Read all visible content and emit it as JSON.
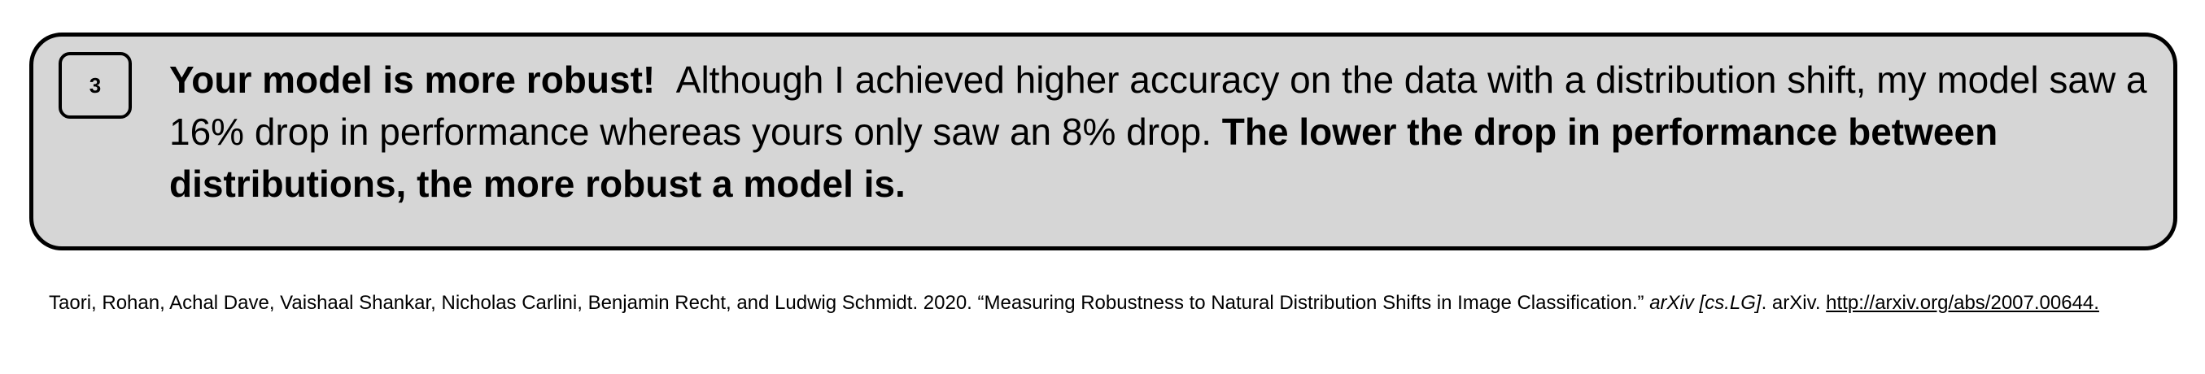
{
  "callout": {
    "number": "3",
    "headline": "Your model is more robust!",
    "body": "Although I achieved higher accuracy on the data with a distribution shift, my model saw a 16% drop in performance whereas yours only saw an 8% drop.",
    "conclusion": "The lower the drop in performance between distributions, the more robust a model is."
  },
  "reference": {
    "authors_year_title": "Taori, Rohan, Achal Dave, Vaishaal Shankar, Nicholas Carlini, Benjamin Recht, and Ludwig Schmidt. 2020. “Measuring Robustness to Natural Distribution Shifts in Image Classification.”",
    "venue": "arXiv [cs.LG]",
    "after_venue": ". arXiv.",
    "link": "http://arxiv.org/abs/2007.00644."
  }
}
